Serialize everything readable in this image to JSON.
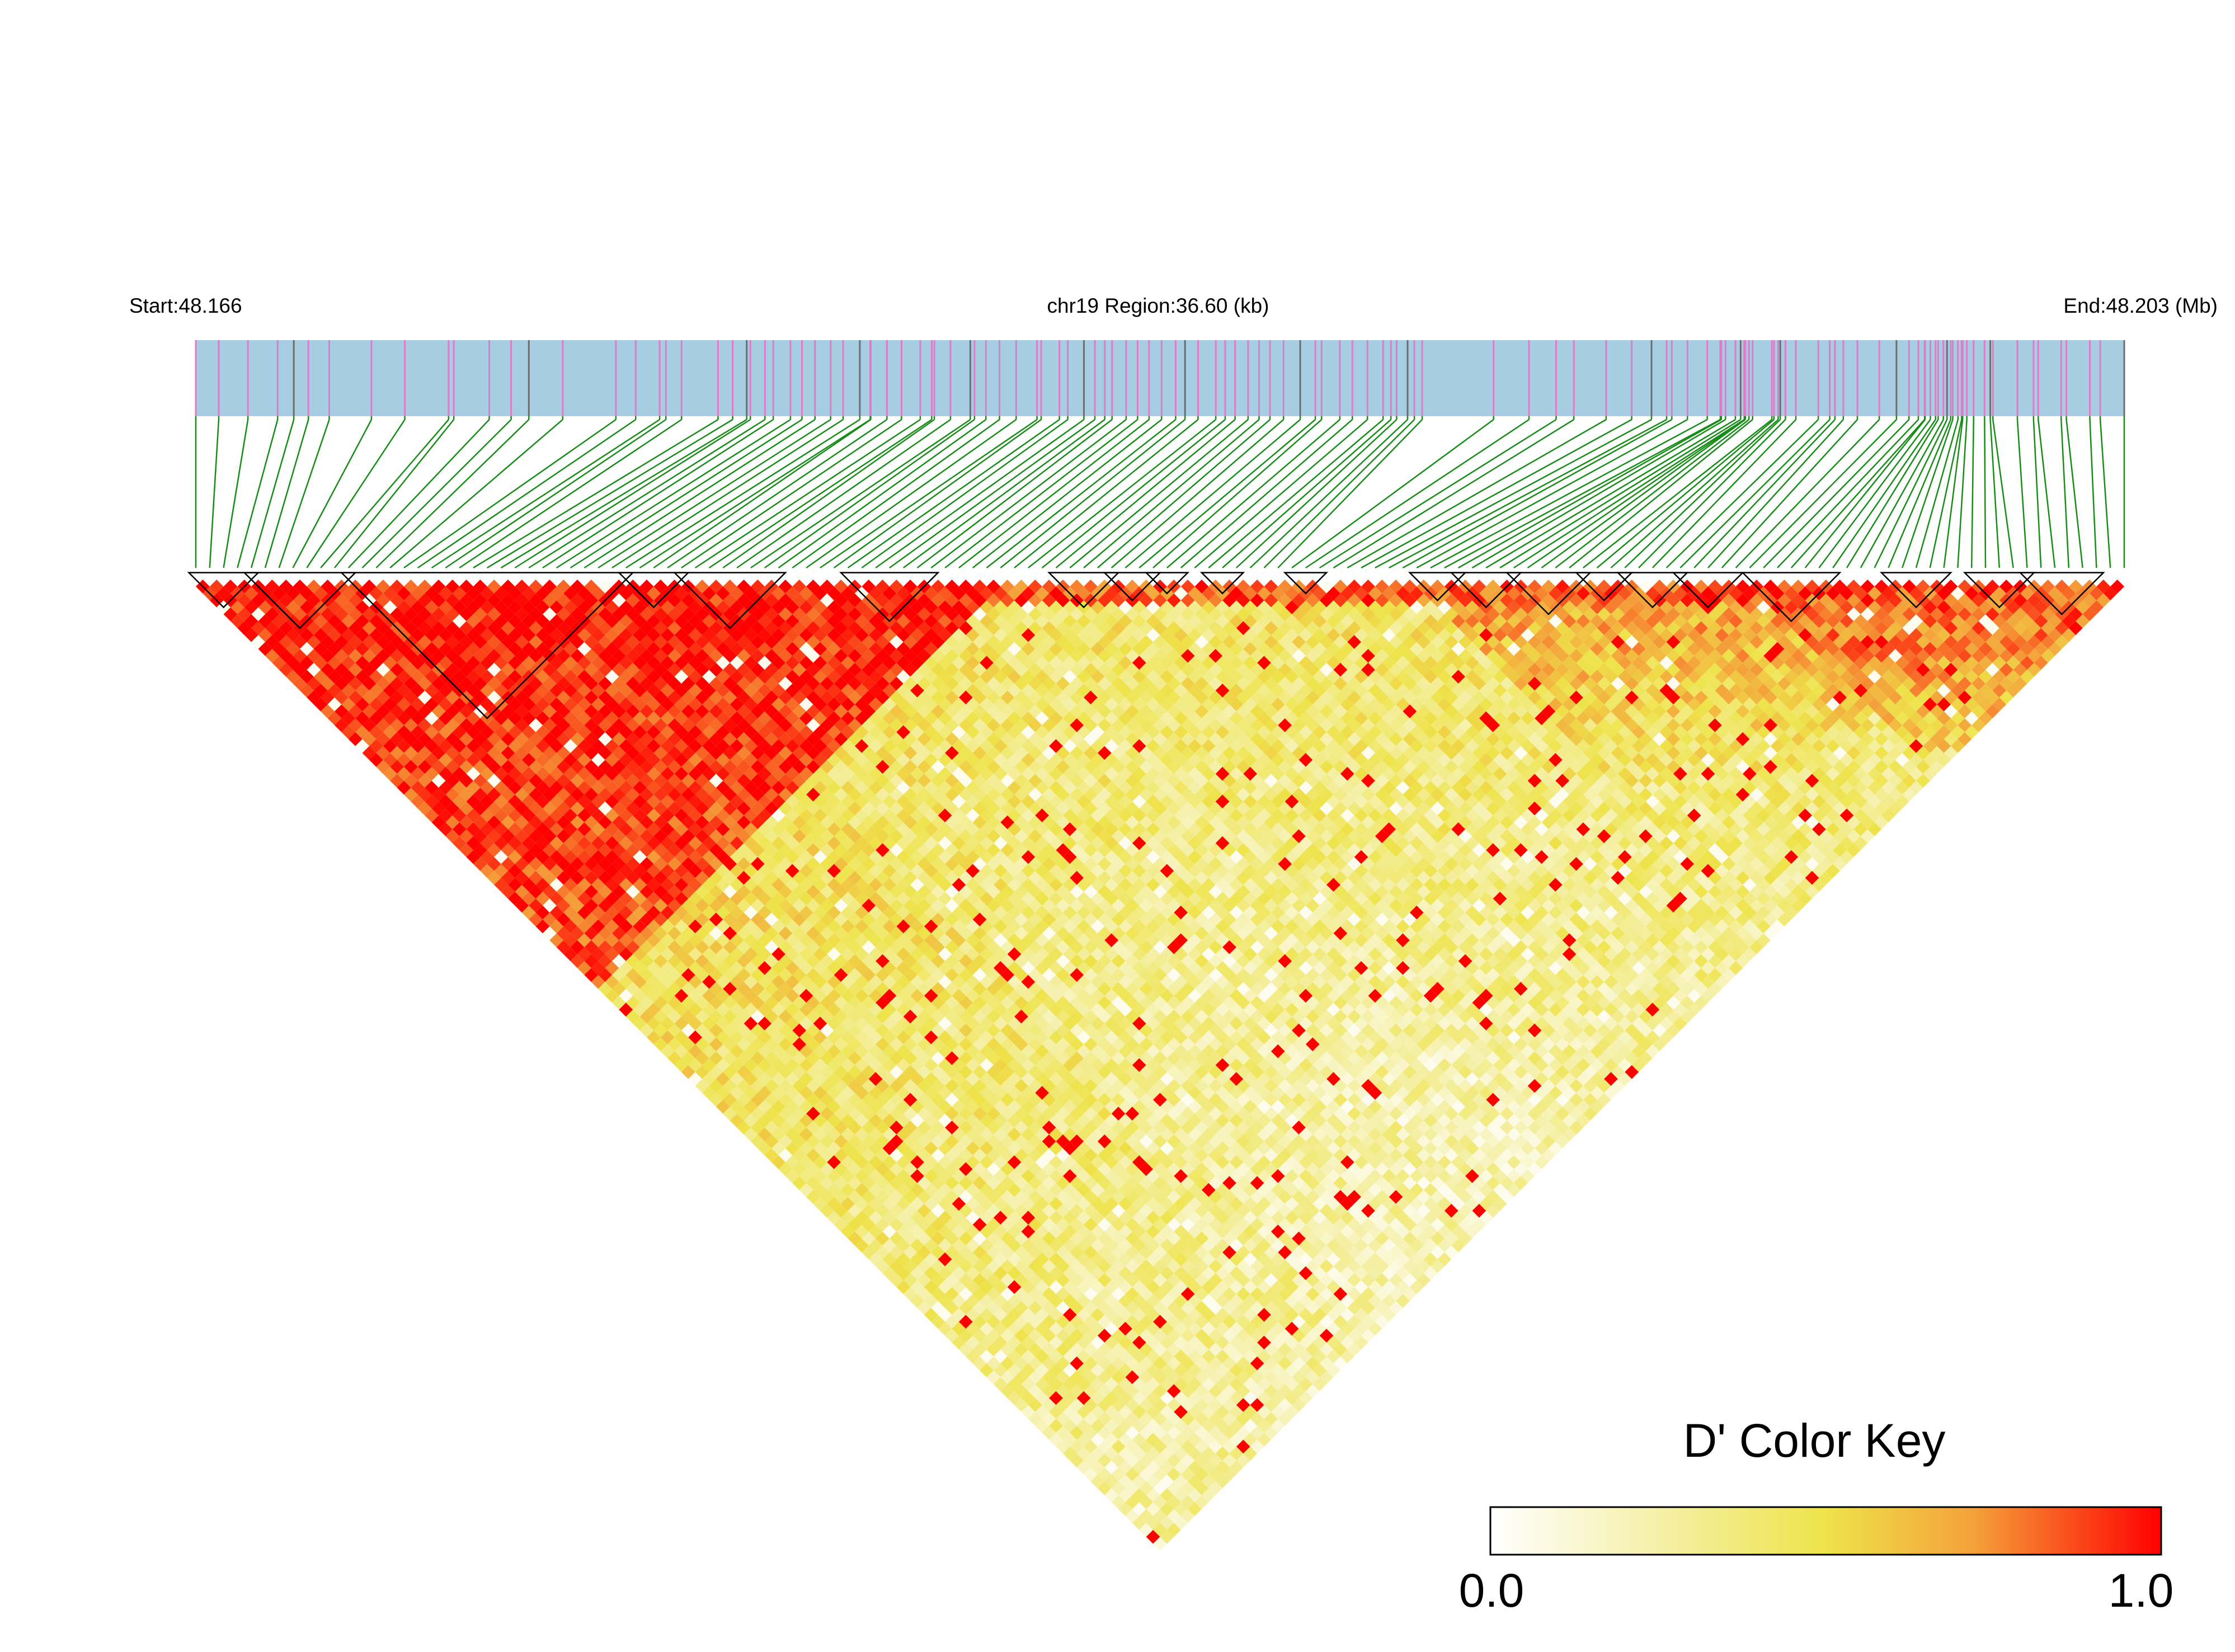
{
  "chart_data": {
    "type": "heatmap",
    "subtype": "ld-block-triangle",
    "labels": {
      "start": "Start:48.166",
      "region": "chr19 Region:36.60 (kb)",
      "end": "End:48.203 (Mb)"
    },
    "region": {
      "chromosome": "chr19",
      "start_mb": 48.166,
      "end_mb": 48.203,
      "length_kb": 36.6
    },
    "metric": "D'",
    "color_key": {
      "title": "D' Color Key",
      "min_label": "0.0",
      "max_label": "1.0",
      "range": [
        0.0,
        1.0
      ],
      "stops": [
        "#ffffff",
        "#f5f0a8",
        "#eee34a",
        "#f4a13a",
        "#ff0000"
      ]
    },
    "colors": {
      "gene_track": "#a6cde2",
      "snp_tick": "#e07bc8",
      "snp_tick_dark": "#6d6d6d",
      "connector": "#188c18",
      "block_outline": "#000000"
    },
    "snp_count": 140,
    "snp_positions_mb": [
      48.166,
      48.16644,
      48.167,
      48.16757,
      48.16788,
      48.16816,
      48.16856,
      48.16937,
      48.17001,
      48.17085,
      48.17095,
      48.17163,
      48.17205,
      48.17239,
      48.17304,
      48.17406,
      48.17444,
      48.1749,
      48.17502,
      48.17532,
      48.17602,
      48.1763,
      48.17657,
      48.17664,
      48.17692,
      48.17708,
      48.17741,
      48.17763,
      48.17788,
      48.17818,
      48.17842,
      48.17874,
      48.17894,
      48.17895,
      48.17926,
      48.17954,
      48.1799,
      48.18012,
      48.18017,
      48.18048,
      48.18086,
      48.18094,
      48.18116,
      48.18142,
      48.18174,
      48.18214,
      48.18222,
      48.18257,
      48.18273,
      48.18304,
      48.18325,
      48.18344,
      48.18358,
      48.18385,
      48.18407,
      48.18429,
      48.18453,
      48.1848,
      48.18498,
      48.18523,
      48.18557,
      48.18575,
      48.18594,
      48.18619,
      48.1864,
      48.18661,
      48.18687,
      48.18719,
      48.18748,
      48.1876,
      48.18795,
      48.18819,
      48.18848,
      48.18878,
      48.18893,
      48.18904,
      48.18925,
      48.18938,
      48.18953,
      48.1909,
      48.19158,
      48.1921,
      48.19244,
      48.19306,
      48.19355,
      48.19393,
      48.19422,
      48.19432,
      48.19462,
      48.195,
      48.19525,
      48.19527,
      48.19535,
      48.19554,
      48.19564,
      48.19571,
      48.19572,
      48.19573,
      48.1958,
      48.19587,
      48.19624,
      48.19628,
      48.19636,
      48.1964,
      48.1965,
      48.1967,
      48.19713,
      48.19735,
      48.19745,
      48.19761,
      48.19788,
      48.1983,
      48.19863,
      48.19887,
      48.19905,
      48.19917,
      48.19918,
      48.19928,
      48.19938,
      48.19943,
      48.19953,
      48.1996,
      48.19967,
      48.19971,
      48.19981,
      48.19988,
      48.1999,
      48.19998,
      48.20011,
      48.20032,
      48.20043,
      48.20048,
      48.20095,
      48.20126,
      48.20135,
      48.20179,
      48.20189,
      48.20234,
      48.20254,
      48.203
    ],
    "ld_blocks": [
      {
        "first_snp": 1,
        "last_snp": 5
      },
      {
        "first_snp": 5,
        "last_snp": 12
      },
      {
        "first_snp": 12,
        "last_snp": 32
      },
      {
        "first_snp": 32,
        "last_snp": 36
      },
      {
        "first_snp": 36,
        "last_snp": 43
      },
      {
        "first_snp": 48,
        "last_snp": 54
      },
      {
        "first_snp": 63,
        "last_snp": 67
      },
      {
        "first_snp": 67,
        "last_snp": 70
      },
      {
        "first_snp": 70,
        "last_snp": 72
      },
      {
        "first_snp": 74,
        "last_snp": 76
      },
      {
        "first_snp": 80,
        "last_snp": 82
      },
      {
        "first_snp": 89,
        "last_snp": 92
      },
      {
        "first_snp": 92,
        "last_snp": 96
      },
      {
        "first_snp": 96,
        "last_snp": 101
      },
      {
        "first_snp": 101,
        "last_snp": 104
      },
      {
        "first_snp": 104,
        "last_snp": 108
      },
      {
        "first_snp": 108,
        "last_snp": 112
      },
      {
        "first_snp": 113,
        "last_snp": 119
      },
      {
        "first_snp": 123,
        "last_snp": 127
      },
      {
        "first_snp": 129,
        "last_snp": 133
      },
      {
        "first_snp": 133,
        "last_snp": 138
      }
    ]
  }
}
